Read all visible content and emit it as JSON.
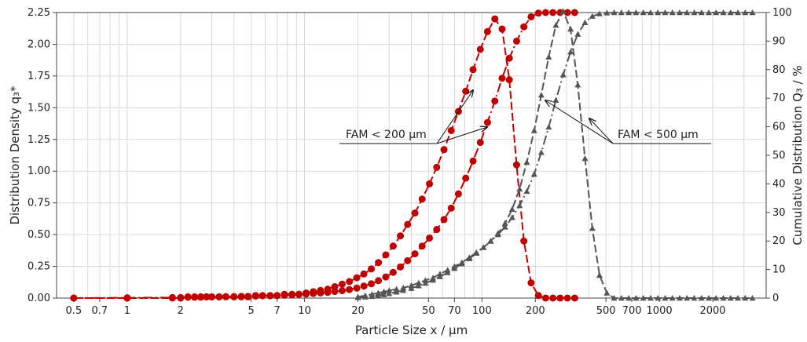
{
  "chart_data": {
    "type": "line",
    "xlabel": "Particle Size x / µm",
    "ylabel_left": "Distribution Density q₃*",
    "ylabel_right": "Cumulative Distribution Q₃ / %",
    "x_scale": "log",
    "xlim": [
      0.4,
      4000
    ],
    "ylim_left": [
      0,
      2.25
    ],
    "ylim_right": [
      0,
      100
    ],
    "grid": true,
    "x_ticks": [
      0.5,
      0.7,
      1,
      2,
      5,
      7,
      10,
      20,
      50,
      70,
      100,
      200,
      500,
      700,
      1000,
      2000
    ],
    "x_tick_labels": [
      "0.5",
      "0.7",
      "1",
      "2",
      "5",
      "7",
      "10",
      "20",
      "50",
      "70",
      "100",
      "200",
      "500",
      "700",
      "1000",
      "2000"
    ],
    "y_left_ticks": [
      0,
      0.25,
      0.5,
      0.75,
      1.0,
      1.25,
      1.5,
      1.75,
      2.0,
      2.25
    ],
    "y_left_tick_labels": [
      "0.00",
      "0.25",
      "0.50",
      "0.75",
      "1.00",
      "1.25",
      "1.50",
      "1.75",
      "2.00",
      "2.25"
    ],
    "y_right_ticks": [
      0,
      10,
      20,
      30,
      40,
      50,
      60,
      70,
      80,
      90,
      100
    ],
    "y_right_tick_labels": [
      "0",
      "10",
      "20",
      "30",
      "40",
      "50",
      "60",
      "70",
      "80",
      "90",
      "100"
    ],
    "series": [
      {
        "id": "fam200-cumulative",
        "axis": "right",
        "color": "#c00000",
        "marker": "circle",
        "dash": "12,4,2,4",
        "x": [
          0.5,
          1,
          1.8,
          2,
          2.2,
          2.4,
          2.6,
          2.8,
          3,
          3.3,
          3.6,
          4,
          4.4,
          4.8,
          5.3,
          5.8,
          6.4,
          7,
          7.7,
          8.5,
          9.3,
          10.2,
          11.2,
          12.3,
          13.5,
          14.8,
          16.3,
          17.9,
          19.7,
          21.6,
          23.8,
          26.1,
          28.7,
          31.6,
          34.7,
          38.1,
          41.9,
          46,
          50.6,
          55.6,
          61.1,
          67.1,
          73.7,
          81,
          89.1,
          97.9,
          107.5,
          118.2,
          129.9,
          142.7,
          156.8,
          172.3,
          189.3,
          208,
          228.6,
          251.2,
          276,
          303.3,
          333.3
        ],
        "y": [
          0,
          0.1,
          0.2,
          0.2,
          0.3,
          0.3,
          0.3,
          0.4,
          0.4,
          0.4,
          0.5,
          0.5,
          0.6,
          0.6,
          0.7,
          0.8,
          0.8,
          0.9,
          1.0,
          1.1,
          1.3,
          1.4,
          1.6,
          1.8,
          2.0,
          2.3,
          2.6,
          3.0,
          3.5,
          4.2,
          5.0,
          6.1,
          7.4,
          9.0,
          10.9,
          13.1,
          15.5,
          18.2,
          21.0,
          24.0,
          27.5,
          31.5,
          36.5,
          42.0,
          48.0,
          54.5,
          61.5,
          69.0,
          77.0,
          84.0,
          90.0,
          95.0,
          98.5,
          99.8,
          100,
          100,
          100,
          100,
          100
        ]
      },
      {
        "id": "fam200-density",
        "axis": "left",
        "color": "#c00000",
        "marker": "circle",
        "dash": "10,4",
        "x": [
          0.5,
          1,
          1.8,
          2,
          2.2,
          2.4,
          2.6,
          2.8,
          3,
          3.3,
          3.6,
          4,
          4.4,
          4.8,
          5.3,
          5.8,
          6.4,
          7,
          7.7,
          8.5,
          9.3,
          10.2,
          11.2,
          12.3,
          13.5,
          14.8,
          16.3,
          17.9,
          19.7,
          21.6,
          23.8,
          26.1,
          28.7,
          31.6,
          34.7,
          38.1,
          41.9,
          46,
          50.6,
          55.6,
          61.1,
          67.1,
          73.7,
          81,
          89.1,
          97.9,
          107.5,
          118.2,
          129.9,
          142.7,
          156.8,
          172.3,
          189.3,
          208,
          228.6,
          251.2,
          276,
          303.3,
          333.3
        ],
        "y": [
          0,
          0,
          0,
          0,
          0.01,
          0.01,
          0.01,
          0.01,
          0.01,
          0.01,
          0.01,
          0.01,
          0.01,
          0.01,
          0.02,
          0.02,
          0.02,
          0.02,
          0.03,
          0.03,
          0.03,
          0.04,
          0.05,
          0.06,
          0.07,
          0.09,
          0.11,
          0.13,
          0.16,
          0.19,
          0.23,
          0.28,
          0.34,
          0.41,
          0.49,
          0.58,
          0.67,
          0.78,
          0.9,
          1.03,
          1.17,
          1.32,
          1.47,
          1.63,
          1.8,
          1.96,
          2.1,
          2.2,
          2.12,
          1.72,
          1.05,
          0.45,
          0.12,
          0.02,
          0,
          0,
          0,
          0,
          0
        ]
      },
      {
        "id": "fam500-cumulative",
        "axis": "right",
        "color": "#555555",
        "marker": "triangle",
        "dash": "12,4,2,4",
        "x": [
          20,
          22,
          24,
          26,
          28,
          30,
          33,
          36,
          40,
          44,
          48,
          53,
          58,
          64,
          70,
          77,
          85,
          93,
          102,
          112,
          123,
          135,
          148,
          163,
          179,
          197,
          216,
          238,
          261,
          287,
          316,
          347,
          381,
          419,
          460,
          506,
          556,
          611,
          672,
          739,
          812,
          893,
          981,
          1078,
          1185,
          1302,
          1431,
          1573,
          1729,
          1900,
          2088,
          2295,
          2522,
          2772,
          3047,
          3349
        ],
        "y": [
          0.2,
          0.4,
          0.6,
          0.9,
          1.2,
          1.6,
          2.1,
          2.7,
          3.4,
          4.3,
          5.2,
          6.3,
          7.5,
          8.9,
          10.4,
          12.0,
          13.8,
          15.7,
          17.7,
          19.9,
          22.2,
          24.9,
          28.2,
          32.4,
          37.4,
          43.4,
          51.0,
          59.9,
          69.3,
          78.2,
          86.2,
          92.4,
          96.5,
          98.7,
          99.6,
          99.9,
          100,
          100,
          100,
          100,
          100,
          100,
          100,
          100,
          100,
          100,
          100,
          100,
          100,
          100,
          100,
          100,
          100,
          100,
          100,
          100
        ]
      },
      {
        "id": "fam500-density",
        "axis": "left",
        "color": "#555555",
        "marker": "triangle",
        "dash": "10,4",
        "x": [
          20,
          22,
          24,
          26,
          28,
          30,
          33,
          36,
          40,
          44,
          48,
          53,
          58,
          64,
          70,
          77,
          85,
          93,
          102,
          112,
          123,
          135,
          148,
          163,
          179,
          197,
          216,
          238,
          261,
          287,
          316,
          347,
          381,
          419,
          460,
          506,
          556,
          611,
          672,
          739,
          812,
          893,
          981,
          1078,
          1185,
          1302,
          1431,
          1573,
          1729,
          1900,
          2088,
          2295,
          2522,
          2772,
          3047,
          3349
        ],
        "y": [
          0.01,
          0.02,
          0.03,
          0.04,
          0.05,
          0.06,
          0.07,
          0.08,
          0.1,
          0.12,
          0.14,
          0.16,
          0.19,
          0.22,
          0.25,
          0.28,
          0.32,
          0.36,
          0.4,
          0.45,
          0.51,
          0.59,
          0.7,
          0.86,
          1.07,
          1.32,
          1.6,
          1.9,
          2.15,
          2.26,
          2.12,
          1.68,
          1.1,
          0.55,
          0.18,
          0.04,
          0,
          0,
          0,
          0,
          0,
          0,
          0,
          0,
          0,
          0,
          0,
          0,
          0,
          0,
          0,
          0,
          0,
          0,
          0,
          0
        ]
      }
    ],
    "annotations": [
      {
        "text": "FAM < 200 µm",
        "points_to": [
          "fam200-cumulative",
          "fam200-density"
        ]
      },
      {
        "text": "FAM < 500 µm",
        "points_to": [
          "fam500-cumulative",
          "fam500-density"
        ]
      }
    ]
  }
}
